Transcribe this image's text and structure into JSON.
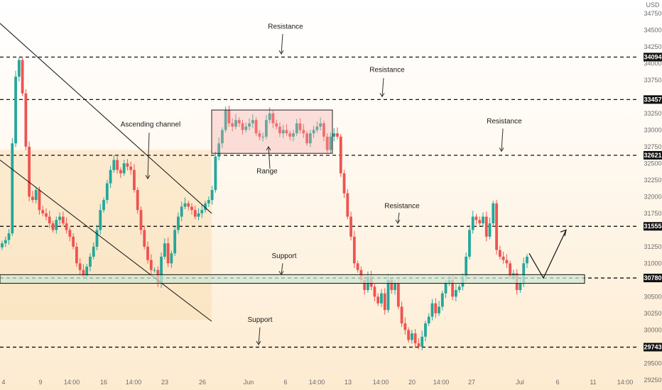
{
  "chart_data": {
    "type": "candlestick",
    "currency": "USD",
    "colors": {
      "up": "#26a69a",
      "down": "#ef5350",
      "level": "#111111",
      "label_bg": "#111111"
    },
    "ylim": [
      29100,
      34950
    ],
    "y_ticks": [
      34750,
      34500,
      34250,
      34000,
      33750,
      33500,
      33250,
      33000,
      32750,
      32500,
      32250,
      32000,
      31750,
      31500,
      31250,
      31000,
      30750,
      30500,
      30250,
      30000,
      29750,
      29500,
      29250
    ],
    "x_ticks": [
      "4",
      "9",
      "14:00",
      "16",
      "14:00",
      "23",
      "26",
      "Jun",
      "6",
      "14:00",
      "13",
      "14:00",
      "20",
      "14:00",
      "27",
      "Jul",
      "6",
      "11",
      "14:00"
    ],
    "levels": [
      {
        "value": 34094,
        "label": "34094"
      },
      {
        "value": 33457,
        "label": "33457"
      },
      {
        "value": 32621,
        "label": "32621"
      },
      {
        "value": 31555,
        "label": "31555"
      },
      {
        "value": 30780,
        "label": "30780"
      },
      {
        "value": 29743,
        "label": "29743"
      }
    ],
    "support_zone": {
      "low": 30700,
      "high": 30830
    },
    "range_box": {
      "low": 32650,
      "high": 33300
    },
    "annotations": [
      {
        "text": "Resistance",
        "level": 34094
      },
      {
        "text": "Resistance",
        "level": 33457
      },
      {
        "text": "Resistance",
        "level": 32621
      },
      {
        "text": "Resistance",
        "level": 31555
      },
      {
        "text": "Support",
        "level": 30780
      },
      {
        "text": "Support",
        "level": 29743
      },
      {
        "text": "Ascending channel",
        "level": null
      },
      {
        "text": "Range",
        "level": null
      }
    ],
    "closes": [
      31300,
      31350,
      31450,
      32800,
      33800,
      34050,
      33550,
      32750,
      32000,
      31950,
      32100,
      31800,
      31750,
      31700,
      31600,
      31500,
      31650,
      31700,
      31600,
      31500,
      31400,
      31250,
      31000,
      30900,
      30800,
      30950,
      31100,
      31250,
      31500,
      31800,
      31950,
      32200,
      32400,
      32550,
      32400,
      32350,
      32500,
      32450,
      32400,
      32100,
      31800,
      31500,
      31250,
      31050,
      30900,
      30900,
      30700,
      31100,
      31300,
      31000,
      31150,
      31500,
      31700,
      31850,
      31900,
      31850,
      31800,
      31700,
      31750,
      31800,
      31900,
      31950,
      32100,
      32600,
      32800,
      33000,
      33300,
      33100,
      33050,
      33150,
      33100,
      33000,
      33050,
      33100,
      33150,
      32950,
      32900,
      32900,
      33150,
      33250,
      33100,
      33050,
      32950,
      33000,
      32950,
      32900,
      32950,
      33100,
      33000,
      32950,
      32800,
      32950,
      33000,
      33050,
      33100,
      32900,
      32700,
      32900,
      32950,
      32900,
      32350,
      32050,
      31700,
      31400,
      31000,
      30900,
      30750,
      30600,
      30800,
      30650,
      30500,
      30400,
      30550,
      30300,
      30750,
      30600,
      30700,
      30350,
      30100,
      30000,
      29850,
      29950,
      29800,
      29750,
      29900,
      30100,
      30200,
      30400,
      30250,
      30350,
      30550,
      30700,
      30750,
      30500,
      30600,
      30650,
      30800,
      31100,
      31500,
      31700,
      31650,
      31600,
      31700,
      31400,
      31600,
      31900,
      31200,
      31100,
      31050,
      31000,
      30800,
      30850,
      30600,
      30700,
      31000,
      31100
    ]
  }
}
